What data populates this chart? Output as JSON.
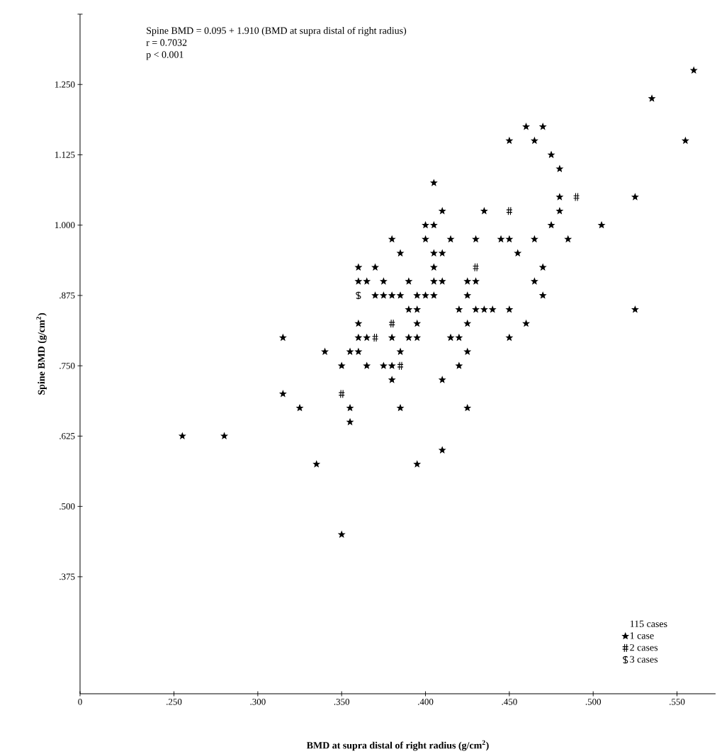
{
  "chart_data": {
    "type": "scatter",
    "xlabel": "BMD at supra distal of right radius (g/cm$^{2}$)",
    "ylabel": "Spine BMD (g/cm$^{2}$)",
    "annotations": [
      "Spine BMD = 0.095 + 1.910 (BMD at supra distal of right radius)",
      "r = 0.7032",
      "p < 0.001"
    ],
    "legend_title": "115 cases",
    "legend": "bottom right",
    "xlim": [
      0.194,
      0.573
    ],
    "xticks": [
      {
        "value": 0.194,
        "label": "0"
      },
      {
        "value": 0.25,
        "label": ".250"
      },
      {
        "value": 0.3,
        "label": ".300"
      },
      {
        "value": 0.35,
        "label": ".350"
      },
      {
        "value": 0.4,
        "label": ".400"
      },
      {
        "value": 0.45,
        "label": ".450"
      },
      {
        "value": 0.5,
        "label": ".500"
      },
      {
        "value": 0.55,
        "label": ".550"
      }
    ],
    "ylim": [
      0.167,
      1.375
    ],
    "yticks": [
      {
        "value": 0.375,
        "label": ".375"
      },
      {
        "value": 0.5,
        "label": ".500"
      },
      {
        "value": 0.625,
        "label": ".625"
      },
      {
        "value": 0.75,
        "label": ".750"
      },
      {
        "value": 0.875,
        "label": ".875"
      },
      {
        "value": 1.0,
        "label": "1.000"
      },
      {
        "value": 1.125,
        "label": "1.125"
      },
      {
        "value": 1.25,
        "label": "1.250"
      },
      {
        "value": 1.375,
        "label": null
      }
    ],
    "series": [
      {
        "name": "1 case",
        "color": "#000000",
        "marker": "star",
        "x": [
          0.405,
          0.41,
          0.435,
          0.4,
          0.405,
          0.38,
          0.4,
          0.415,
          0.43,
          0.385,
          0.405,
          0.41,
          0.36,
          0.37,
          0.405,
          0.36,
          0.365,
          0.375,
          0.39,
          0.405,
          0.41,
          0.425,
          0.43,
          0.37,
          0.375,
          0.38,
          0.385,
          0.395,
          0.4,
          0.405,
          0.425,
          0.39,
          0.395,
          0.42,
          0.43,
          0.435,
          0.44,
          0.36,
          0.395,
          0.425,
          0.36,
          0.365,
          0.38,
          0.39,
          0.395,
          0.415,
          0.42,
          0.34,
          0.355,
          0.36,
          0.385,
          0.425,
          0.35,
          0.365,
          0.375,
          0.38,
          0.42,
          0.38,
          0.41,
          0.355,
          0.385,
          0.425,
          0.355,
          0.41,
          0.395,
          0.255,
          0.28,
          0.315,
          0.315,
          0.325,
          0.335,
          0.35,
          0.56,
          0.535,
          0.46,
          0.47,
          0.45,
          0.465,
          0.555,
          0.475,
          0.48,
          0.48,
          0.525,
          0.48,
          0.475,
          0.505,
          0.445,
          0.45,
          0.465,
          0.485,
          0.455,
          0.47,
          0.465,
          0.47,
          0.45,
          0.525,
          0.46,
          0.45
        ],
        "values": [
          1.075,
          1.025,
          1.025,
          1.0,
          1.0,
          0.975,
          0.975,
          0.975,
          0.975,
          0.95,
          0.95,
          0.95,
          0.925,
          0.925,
          0.925,
          0.9,
          0.9,
          0.9,
          0.9,
          0.9,
          0.9,
          0.9,
          0.9,
          0.875,
          0.875,
          0.875,
          0.875,
          0.875,
          0.875,
          0.875,
          0.875,
          0.85,
          0.85,
          0.85,
          0.85,
          0.85,
          0.85,
          0.825,
          0.825,
          0.825,
          0.8,
          0.8,
          0.8,
          0.8,
          0.8,
          0.8,
          0.8,
          0.775,
          0.775,
          0.775,
          0.775,
          0.775,
          0.75,
          0.75,
          0.75,
          0.75,
          0.75,
          0.725,
          0.725,
          0.675,
          0.675,
          0.675,
          0.65,
          0.6,
          0.575,
          0.625,
          0.625,
          0.8,
          0.7,
          0.675,
          0.575,
          0.45,
          1.275,
          1.225,
          1.175,
          1.175,
          1.15,
          1.15,
          1.15,
          1.125,
          1.1,
          1.05,
          1.05,
          1.025,
          1.0,
          1.0,
          0.975,
          0.975,
          0.975,
          0.975,
          0.95,
          0.925,
          0.9,
          0.875,
          0.85,
          0.85,
          0.825,
          0.8
        ]
      },
      {
        "name": "2 cases",
        "color": "#000000",
        "marker": "cross",
        "x": [
          0.43,
          0.38,
          0.37,
          0.385,
          0.35,
          0.49,
          0.45
        ],
        "values": [
          0.925,
          0.825,
          0.8,
          0.75,
          0.7,
          1.05,
          1.025
        ]
      },
      {
        "name": "3 cases",
        "color": "#000000",
        "marker": "cross",
        "x": [
          0.36
        ],
        "values": [
          0.875
        ]
      }
    ]
  }
}
